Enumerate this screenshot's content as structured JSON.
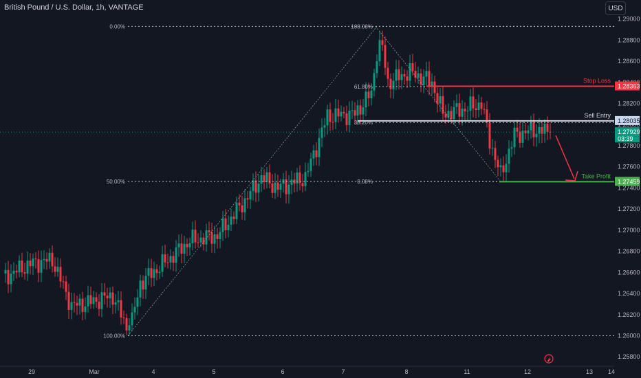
{
  "header": {
    "title": "British Pound / U.S. Dollar, 1h, VANTAGE",
    "currency_button": "USD"
  },
  "chart_data": {
    "type": "candlestick",
    "title": "British Pound / U.S. Dollar, 1h, VANTAGE",
    "ylim": [
      1.2573,
      1.2918
    ],
    "y_ticks": [
      "1.29000",
      "1.28800",
      "1.28600",
      "1.28400",
      "1.28200",
      "1.28000",
      "1.27800",
      "1.27600",
      "1.27400",
      "1.27200",
      "1.27000",
      "1.26800",
      "1.26600",
      "1.26400",
      "1.26200",
      "1.26000",
      "1.25800"
    ],
    "x_ticks": [
      "29",
      "Mar",
      "4",
      "5",
      "6",
      "7",
      "8",
      "11",
      "12",
      "13",
      "14"
    ],
    "current_price": {
      "value": "1.27929",
      "countdown": "03:39",
      "color": "#089981"
    },
    "levels": [
      {
        "name": "Stop Loss",
        "label": "Stop Loss",
        "value": "1.28363",
        "color": "#f23645"
      },
      {
        "name": "Sell Entry",
        "label": "Sell Entry",
        "value": "1.28035",
        "color": "#d1d4dc"
      },
      {
        "name": "Take Profit",
        "label": "Take Profit",
        "value": "1.27459",
        "color": "#4caf50"
      }
    ],
    "fib_left": {
      "labels": [
        "0.00%",
        "50.00%",
        "100.00%"
      ],
      "values": [
        1.2893,
        1.2746,
        1.26
      ]
    },
    "fib_right": {
      "labels": [
        "100.00%",
        "61.80%",
        "38.20%",
        "0.00%"
      ],
      "values": [
        1.2893,
        1.2836,
        1.2802,
        1.2746
      ]
    },
    "up_color": "#089981",
    "down_color": "#f23645",
    "anchors": [
      {
        "i": 0,
        "p": 1.2655
      },
      {
        "i": 10,
        "p": 1.2668
      },
      {
        "i": 18,
        "p": 1.2672
      },
      {
        "i": 25,
        "p": 1.2628
      },
      {
        "i": 32,
        "p": 1.2632
      },
      {
        "i": 40,
        "p": 1.2638
      },
      {
        "i": 46,
        "p": 1.2602
      },
      {
        "i": 50,
        "p": 1.265
      },
      {
        "i": 60,
        "p": 1.2672
      },
      {
        "i": 68,
        "p": 1.269
      },
      {
        "i": 78,
        "p": 1.2695
      },
      {
        "i": 88,
        "p": 1.2728
      },
      {
        "i": 94,
        "p": 1.275
      },
      {
        "i": 100,
        "p": 1.274
      },
      {
        "i": 110,
        "p": 1.275
      },
      {
        "i": 118,
        "p": 1.2808
      },
      {
        "i": 128,
        "p": 1.281
      },
      {
        "i": 134,
        "p": 1.283
      },
      {
        "i": 137,
        "p": 1.2888
      },
      {
        "i": 140,
        "p": 1.284
      },
      {
        "i": 148,
        "p": 1.285
      },
      {
        "i": 156,
        "p": 1.284
      },
      {
        "i": 160,
        "p": 1.281
      },
      {
        "i": 168,
        "p": 1.2815
      },
      {
        "i": 174,
        "p": 1.282
      },
      {
        "i": 177,
        "p": 1.2785
      },
      {
        "i": 181,
        "p": 1.2752
      },
      {
        "i": 186,
        "p": 1.279
      },
      {
        "i": 193,
        "p": 1.2795
      },
      {
        "i": 199,
        "p": 1.2793
      }
    ]
  }
}
